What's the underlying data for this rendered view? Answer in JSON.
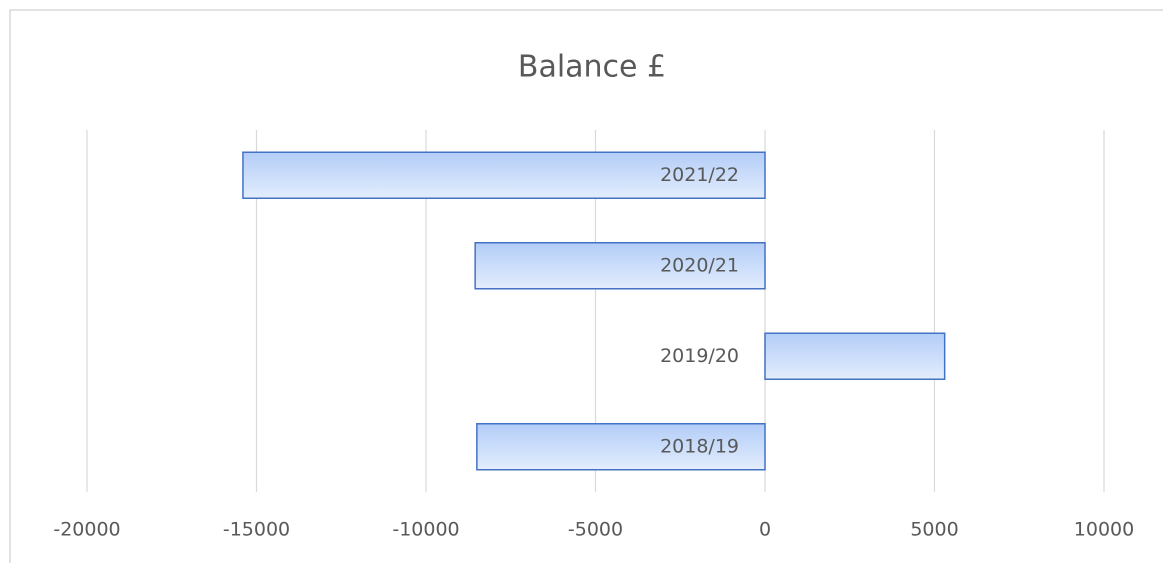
{
  "chart_data": {
    "type": "barh",
    "title": "Balance £",
    "categories": [
      "2021/22",
      "2020/21",
      "2019/20",
      "2018/19"
    ],
    "values": [
      -15400,
      -8550,
      5300,
      -8500
    ],
    "color": "#4472c4",
    "xlim": [
      -20000,
      10000
    ],
    "xticks": [
      -20000,
      -15000,
      -10000,
      -5000,
      0,
      5000,
      10000
    ],
    "grid": true
  }
}
